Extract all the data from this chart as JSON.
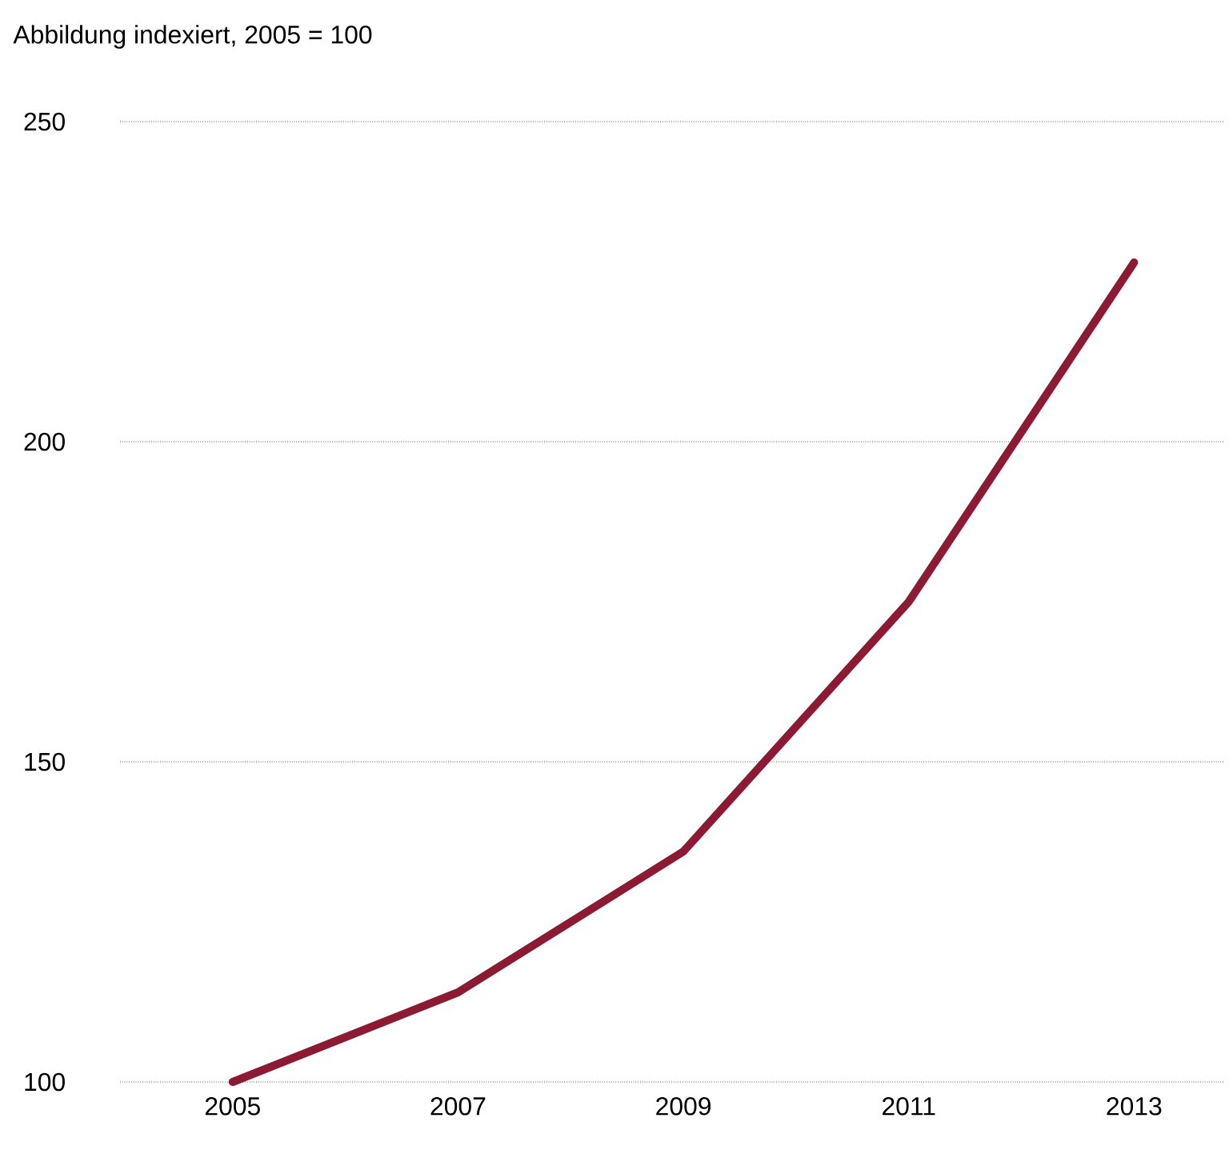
{
  "chart_data": {
    "type": "line",
    "title": "Abbildung indexiert, 2005 = 100",
    "x": [
      2005,
      2007,
      2009,
      2011,
      2013
    ],
    "series": [
      {
        "color": "#8b1a32",
        "values": [
          100,
          114,
          136,
          175,
          228
        ]
      }
    ],
    "xlim": [
      2004,
      2013.8
    ],
    "ylim": [
      100,
      250
    ],
    "xticks": [
      2005,
      2007,
      2009,
      2011,
      2013
    ],
    "yticks": [
      100,
      150,
      200,
      250
    ],
    "grid": "y"
  }
}
